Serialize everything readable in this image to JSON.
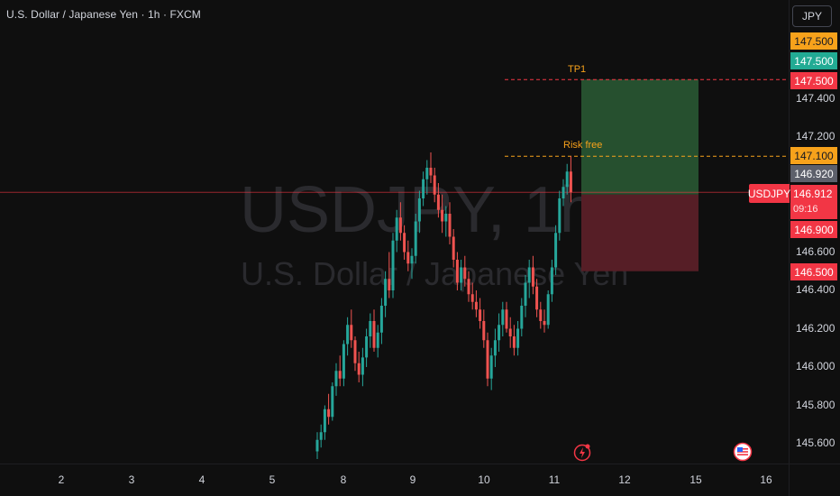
{
  "header": {
    "title": "U.S. Dollar / Japanese Yen · 1h · FXCM"
  },
  "watermark": {
    "symbol_line": "USDJPY, 1h",
    "name_line": "U.S. Dollar / Japanese Yen"
  },
  "currency_button": {
    "label": "JPY"
  },
  "price_axis": {
    "ticks": [
      "147.400",
      "147.200",
      "146.600",
      "146.400",
      "146.200",
      "146.000",
      "145.800",
      "145.600"
    ],
    "tags": [
      {
        "label": "147.500",
        "kind": "orange"
      },
      {
        "label": "147.500",
        "kind": "green"
      },
      {
        "label": "147.500",
        "kind": "red"
      },
      {
        "label": "147.100",
        "kind": "orange"
      },
      {
        "label": "146.920",
        "kind": "gray"
      },
      {
        "label": "146.900",
        "kind": "red"
      },
      {
        "label": "146.500",
        "kind": "red"
      }
    ],
    "last_price": {
      "symbol": "USDJPY",
      "price": "146.912",
      "countdown": "09:16"
    }
  },
  "time_axis": {
    "ticks": [
      "2",
      "3",
      "4",
      "5",
      "8",
      "9",
      "10",
      "11",
      "12",
      "15",
      "16"
    ]
  },
  "annotations": {
    "tp1": "TP1",
    "risk_free": "Risk free"
  },
  "colors": {
    "up": "#26a69a",
    "down": "#ef5350",
    "profit_zone": "#26502f",
    "loss_zone": "#561e26",
    "orange": "#f7a21b",
    "red_tag": "#f23645",
    "green_tag": "#22ab94",
    "gray_tag": "#5d606b",
    "background": "#0f0f0f"
  },
  "icons": {
    "lightning": "lightning-icon",
    "flag": "us-flag-icon"
  },
  "chart_data": {
    "type": "candlestick",
    "title": "U.S. Dollar / Japanese Yen · 1h · FXCM",
    "symbol": "USDJPY",
    "interval": "1h",
    "x_tick_labels": [
      "2",
      "3",
      "4",
      "5",
      "8",
      "9",
      "10",
      "11",
      "12",
      "15",
      "16"
    ],
    "y_tick_labels": [
      "147.400",
      "147.200",
      "146.600",
      "146.400",
      "146.200",
      "146.000",
      "145.800",
      "145.600"
    ],
    "ylim": [
      145.5,
      147.85
    ],
    "current_price": 146.912,
    "ask_price": 146.92,
    "position": {
      "type": "long",
      "entry": 146.9,
      "take_profit": 147.5,
      "stop_loss": 146.5,
      "risk_free_level": 147.1
    },
    "candles_ohlc": [
      [
        145.56,
        145.66,
        145.52,
        145.62
      ],
      [
        145.62,
        145.7,
        145.58,
        145.66
      ],
      [
        145.66,
        145.8,
        145.62,
        145.78
      ],
      [
        145.78,
        145.86,
        145.7,
        145.74
      ],
      [
        145.74,
        145.92,
        145.72,
        145.9
      ],
      [
        145.9,
        146.02,
        145.85,
        145.98
      ],
      [
        145.98,
        146.06,
        145.9,
        145.94
      ],
      [
        145.94,
        146.14,
        145.9,
        146.12
      ],
      [
        146.12,
        146.26,
        146.06,
        146.22
      ],
      [
        146.22,
        146.3,
        146.1,
        146.14
      ],
      [
        146.14,
        146.16,
        145.98,
        146.02
      ],
      [
        146.02,
        146.08,
        145.92,
        145.96
      ],
      [
        145.96,
        146.1,
        145.9,
        146.05
      ],
      [
        146.05,
        146.2,
        146.0,
        146.16
      ],
      [
        146.16,
        146.28,
        146.1,
        146.24
      ],
      [
        146.24,
        146.3,
        146.08,
        146.1
      ],
      [
        146.1,
        146.22,
        146.05,
        146.18
      ],
      [
        146.18,
        146.36,
        146.12,
        146.32
      ],
      [
        146.32,
        146.5,
        146.26,
        146.46
      ],
      [
        146.46,
        146.6,
        146.36,
        146.4
      ],
      [
        146.4,
        146.7,
        146.36,
        146.66
      ],
      [
        146.66,
        146.82,
        146.6,
        146.78
      ],
      [
        146.78,
        146.86,
        146.66,
        146.7
      ],
      [
        146.7,
        146.74,
        146.56,
        146.6
      ],
      [
        146.6,
        146.66,
        146.5,
        146.54
      ],
      [
        146.54,
        146.62,
        146.46,
        146.58
      ],
      [
        146.58,
        146.8,
        146.54,
        146.76
      ],
      [
        146.76,
        146.92,
        146.7,
        146.88
      ],
      [
        146.88,
        147.02,
        146.84,
        146.98
      ],
      [
        146.98,
        147.08,
        146.9,
        147.04
      ],
      [
        147.04,
        147.12,
        146.96,
        147.0
      ],
      [
        147.0,
        147.04,
        146.86,
        146.9
      ],
      [
        146.9,
        146.96,
        146.78,
        146.82
      ],
      [
        146.82,
        146.9,
        146.7,
        146.76
      ],
      [
        146.76,
        146.84,
        146.68,
        146.8
      ],
      [
        146.8,
        146.86,
        146.64,
        146.68
      ],
      [
        146.68,
        146.72,
        146.52,
        146.56
      ],
      [
        146.56,
        146.6,
        146.4,
        146.44
      ],
      [
        146.44,
        146.56,
        146.4,
        146.52
      ],
      [
        146.52,
        146.58,
        146.42,
        146.46
      ],
      [
        146.46,
        146.5,
        146.34,
        146.38
      ],
      [
        146.38,
        146.44,
        146.3,
        146.34
      ],
      [
        146.34,
        146.4,
        146.26,
        146.3
      ],
      [
        146.3,
        146.36,
        146.2,
        146.24
      ],
      [
        146.24,
        146.3,
        146.1,
        146.14
      ],
      [
        146.14,
        146.18,
        145.9,
        145.94
      ],
      [
        145.94,
        146.1,
        145.88,
        146.06
      ],
      [
        146.06,
        146.2,
        146.0,
        146.14
      ],
      [
        146.14,
        146.28,
        146.08,
        146.22
      ],
      [
        146.22,
        146.34,
        146.16,
        146.3
      ],
      [
        146.3,
        146.34,
        146.18,
        146.2
      ],
      [
        146.2,
        146.26,
        146.1,
        146.16
      ],
      [
        146.16,
        146.22,
        146.06,
        146.1
      ],
      [
        146.1,
        146.24,
        146.06,
        146.2
      ],
      [
        146.2,
        146.36,
        146.16,
        146.32
      ],
      [
        146.32,
        146.48,
        146.26,
        146.44
      ],
      [
        146.44,
        146.56,
        146.36,
        146.52
      ],
      [
        146.52,
        146.58,
        146.38,
        146.42
      ],
      [
        146.42,
        146.46,
        146.26,
        146.3
      ],
      [
        146.3,
        146.34,
        146.2,
        146.24
      ],
      [
        146.24,
        146.3,
        146.18,
        146.22
      ],
      [
        146.22,
        146.4,
        146.2,
        146.38
      ],
      [
        146.38,
        146.56,
        146.34,
        146.52
      ],
      [
        146.52,
        146.74,
        146.48,
        146.7
      ],
      [
        146.7,
        146.92,
        146.66,
        146.88
      ],
      [
        146.88,
        146.98,
        146.84,
        146.94
      ],
      [
        146.94,
        147.06,
        146.9,
        147.02
      ],
      [
        147.02,
        147.1,
        146.86,
        146.912
      ]
    ]
  }
}
